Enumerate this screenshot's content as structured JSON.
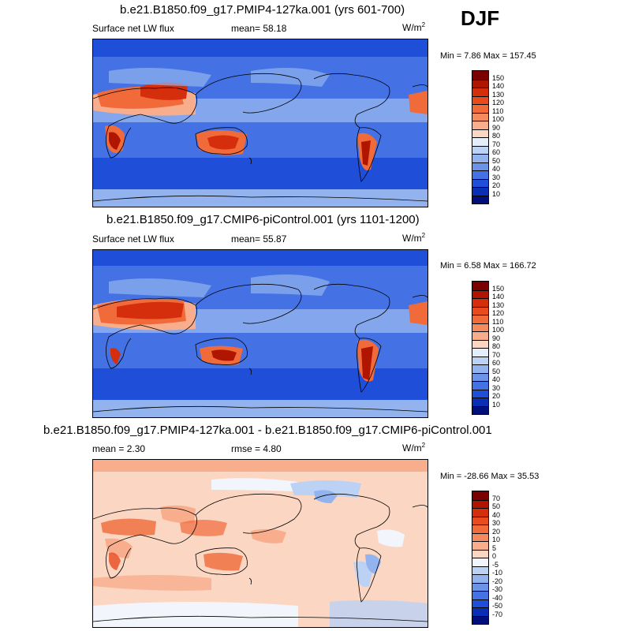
{
  "season": "DJF",
  "chart_data": [
    {
      "type": "heatmap",
      "title": "b.e21.B1850.f09_g17.PMIP4-127ka.001 (yrs 601-700)",
      "left_label": "Surface net LW flux",
      "stats": [
        {
          "label": "mean=",
          "value": "58.18"
        }
      ],
      "units": "W/m",
      "units_sup": "2",
      "min_label": "Min =",
      "min": "7.86",
      "max_label": "Max =",
      "max": "157.45",
      "colorbar": {
        "levels": [
          "150",
          "140",
          "130",
          "120",
          "110",
          "100",
          "90",
          "80",
          "70",
          "60",
          "50",
          "40",
          "30",
          "20",
          "10"
        ],
        "colors": [
          "#7a0000",
          "#b01500",
          "#d42e0c",
          "#e84b1e",
          "#f06a3a",
          "#f58a5e",
          "#f8ad8c",
          "#fbd6c2",
          "#e4eefb",
          "#bcd2f5",
          "#93b3ee",
          "#6b93e8",
          "#4472e4",
          "#1f4fd8",
          "#0a2fb5",
          "#000f7a"
        ]
      },
      "regions": [
        "africa-sahara",
        "australia",
        "middle-east",
        "southern-africa",
        "south-america-south",
        "north-africa"
      ]
    },
    {
      "type": "heatmap",
      "title": "b.e21.B1850.f09_g17.CMIP6-piControl.001 (yrs 1101-1200)",
      "left_label": "Surface net LW flux",
      "stats": [
        {
          "label": "mean=",
          "value": "55.87"
        }
      ],
      "units": "W/m",
      "units_sup": "2",
      "min_label": "Min =",
      "min": "6.58",
      "max_label": "Max =",
      "max": "166.72",
      "colorbar": {
        "levels": [
          "150",
          "140",
          "130",
          "120",
          "110",
          "100",
          "90",
          "80",
          "70",
          "60",
          "50",
          "40",
          "30",
          "20",
          "10"
        ],
        "colors": [
          "#7a0000",
          "#b01500",
          "#d42e0c",
          "#e84b1e",
          "#f06a3a",
          "#f58a5e",
          "#f8ad8c",
          "#fbd6c2",
          "#e4eefb",
          "#bcd2f5",
          "#93b3ee",
          "#6b93e8",
          "#4472e4",
          "#1f4fd8",
          "#0a2fb5",
          "#000f7a"
        ]
      }
    },
    {
      "type": "heatmap",
      "title": "b.e21.B1850.f09_g17.PMIP4-127ka.001 - b.e21.B1850.f09_g17.CMIP6-piControl.001",
      "stats": [
        {
          "label": "mean =",
          "value": "2.30"
        },
        {
          "label": "rmse =",
          "value": "4.80"
        }
      ],
      "units": "W/m",
      "units_sup": "2",
      "min_label": "Min =",
      "min": "-28.66",
      "max_label": "Max =",
      "max": "35.53",
      "colorbar": {
        "levels": [
          "70",
          "50",
          "40",
          "30",
          "20",
          "10",
          "5",
          "0",
          "-5",
          "-10",
          "-20",
          "-30",
          "-40",
          "-50",
          "-70"
        ],
        "colors": [
          "#7a0000",
          "#b01500",
          "#d42e0c",
          "#e84b1e",
          "#f06a3a",
          "#f58a5e",
          "#f8ad8c",
          "#fbd6c2",
          "#f2f5fb",
          "#bcd2f5",
          "#93b3ee",
          "#6b93e8",
          "#4472e4",
          "#1f4fd8",
          "#0a2fb5",
          "#000f7a"
        ]
      }
    }
  ]
}
